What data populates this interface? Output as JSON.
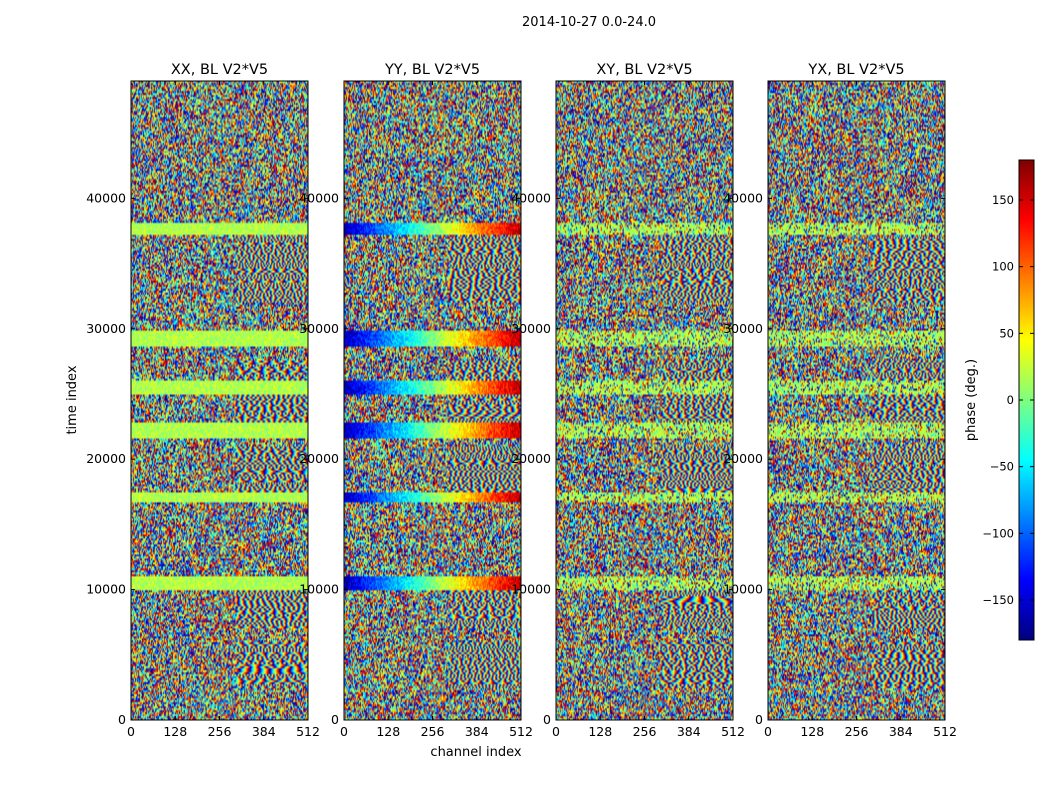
{
  "chart_data": {
    "type": "heatmap",
    "suptitle": "2014-10-27 0.0-24.0",
    "xlabel": "channel index",
    "ylabel": "time index",
    "x_ticks": [
      0,
      128,
      256,
      384,
      512
    ],
    "y_ticks": [
      0,
      10000,
      20000,
      30000,
      40000
    ],
    "xlim": [
      0,
      512
    ],
    "ylim": [
      0,
      49000
    ],
    "colormap": "jet",
    "colorbar": {
      "label": "phase (deg.)",
      "range": [
        -180,
        180
      ],
      "ticks": [
        -150,
        -100,
        -50,
        0,
        50,
        100,
        150
      ],
      "placement": "right"
    },
    "panels": [
      {
        "title": "XX, BL V2*V5",
        "pol": "XX"
      },
      {
        "title": "YY, BL V2*V5",
        "pol": "YY"
      },
      {
        "title": "XY, BL V2*V5",
        "pol": "XY"
      },
      {
        "title": "YX, BL V2*V5",
        "pol": "YX"
      }
    ],
    "coherent_time_ranges": [
      [
        37200,
        38200
      ],
      [
        28700,
        29900
      ],
      [
        25000,
        26000
      ],
      [
        21600,
        22800
      ],
      [
        16700,
        17500
      ],
      [
        10000,
        11000
      ]
    ],
    "fringe_time_ranges": [
      [
        32000,
        37000
      ],
      [
        22500,
        27500
      ],
      [
        17500,
        21000
      ],
      [
        7000,
        10000
      ],
      [
        2500,
        6000
      ]
    ]
  },
  "colors": {
    "jet": [
      "#00007f",
      "#0000ff",
      "#007fff",
      "#00ffff",
      "#7fff7f",
      "#ffff00",
      "#ff7f00",
      "#ff0000",
      "#7f0000"
    ]
  }
}
